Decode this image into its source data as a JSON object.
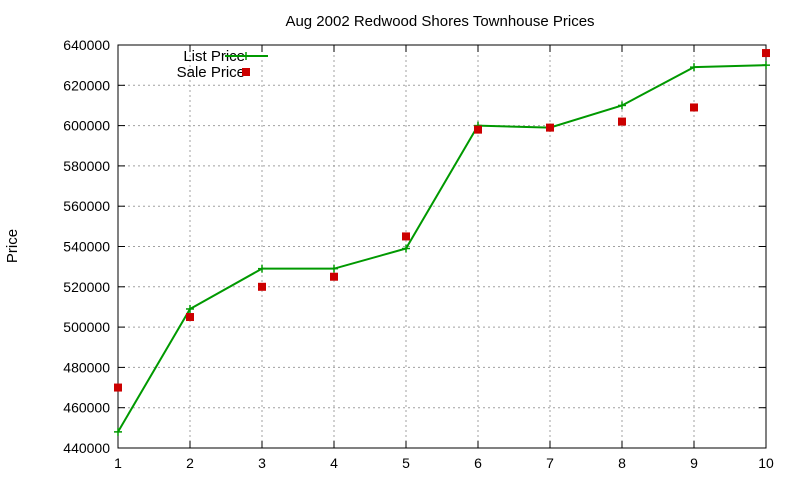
{
  "chart_data": {
    "type": "line",
    "title": "Aug 2002 Redwood Shores Townhouse Prices",
    "xlabel": "",
    "ylabel": "Price",
    "xlim": [
      1,
      10
    ],
    "ylim": [
      440000,
      640000
    ],
    "x_ticks": [
      1,
      2,
      3,
      4,
      5,
      6,
      7,
      8,
      9,
      10
    ],
    "y_ticks": [
      440000,
      460000,
      480000,
      500000,
      520000,
      540000,
      560000,
      580000,
      600000,
      620000,
      640000
    ],
    "grid": true,
    "legend_position": "top-left",
    "series": [
      {
        "name": "List Price",
        "style": "line-with-plus-markers",
        "color": "#009900",
        "x": [
          1,
          2,
          3,
          4,
          5,
          6,
          7,
          8,
          9,
          10
        ],
        "values": [
          448000,
          509000,
          529000,
          529000,
          539000,
          600000,
          599000,
          610000,
          629000,
          630000
        ]
      },
      {
        "name": "Sale Price",
        "style": "square-markers",
        "color": "#cc0000",
        "x": [
          1,
          2,
          3,
          4,
          5,
          6,
          7,
          8,
          9,
          10
        ],
        "values": [
          470000,
          505000,
          520000,
          525000,
          545000,
          598000,
          599000,
          602000,
          609000,
          636000
        ]
      }
    ]
  }
}
